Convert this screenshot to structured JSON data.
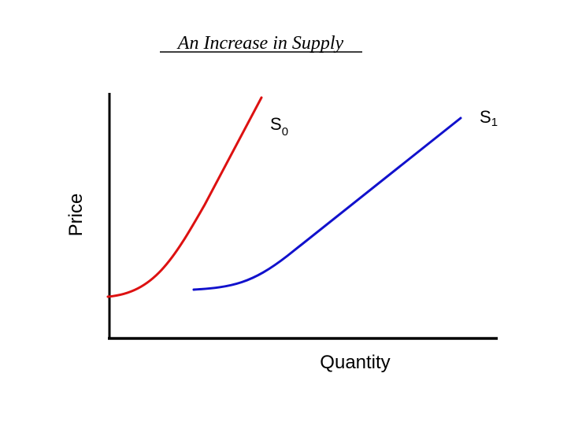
{
  "title": "An Increase in Supply",
  "axes": {
    "y_label": "Price",
    "x_label": "Quantity"
  },
  "curves": {
    "s0": {
      "label_main": "S",
      "label_sub": "0",
      "color": "#dd1111"
    },
    "s1": {
      "label_main": "S",
      "label_sub": "1",
      "color": "#1111cc"
    }
  },
  "axis_color": "#000000"
}
